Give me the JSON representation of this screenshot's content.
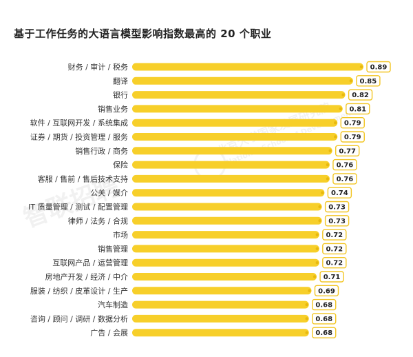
{
  "chart_data": {
    "type": "bar",
    "orientation": "horizontal",
    "title": "基于工作任务的大语言模型影响指数最高的 20 个职业",
    "categories": [
      "财务 / 审计 / 税务",
      "翻译",
      "银行",
      "销售业务",
      "软件 / 互联网开发 / 系统集成",
      "证券 / 期货 / 投资管理 / 服务",
      "销售行政 / 商务",
      "保险",
      "客服 / 售前 / 售后技术支持",
      "公关 / 媒介",
      "IT 质量管理 / 测试 / 配置管理",
      "律师 / 法务 / 合规",
      "市场",
      "销售管理",
      "互联网产品 / 运营管理",
      "房地产开发 / 经济 / 中介",
      "服装 / 纺织 / 皮革设计 / 生产",
      "汽车制造",
      "咨询 / 顾问 / 调研 / 数据分析",
      "广告 / 会展"
    ],
    "values": [
      0.89,
      0.85,
      0.82,
      0.81,
      0.79,
      0.79,
      0.77,
      0.76,
      0.76,
      0.74,
      0.73,
      0.73,
      0.72,
      0.72,
      0.72,
      0.71,
      0.69,
      0.68,
      0.68,
      0.68
    ],
    "value_labels": [
      "0.89",
      "0.85",
      "0.82",
      "0.81",
      "0.79",
      "0.79",
      "0.77",
      "0.76",
      "0.76",
      "0.74",
      "0.73",
      "0.73",
      "0.72",
      "0.72",
      "0.72",
      "0.71",
      "0.69",
      "0.68",
      "0.68",
      "0.68"
    ],
    "xlim": [
      0,
      0.89
    ],
    "grid": false,
    "legend": "none"
  },
  "colors": {
    "bar": "#F7CF2A",
    "bar_end_dot": "#E8B90E",
    "label_box_border": "#F2C522",
    "label_box_fill": "#FFFFFF"
  },
  "watermark": {
    "brand": "智联招聘",
    "institution_cn": "北京大学国家发展研究院",
    "institution_en": "National School of Development"
  }
}
